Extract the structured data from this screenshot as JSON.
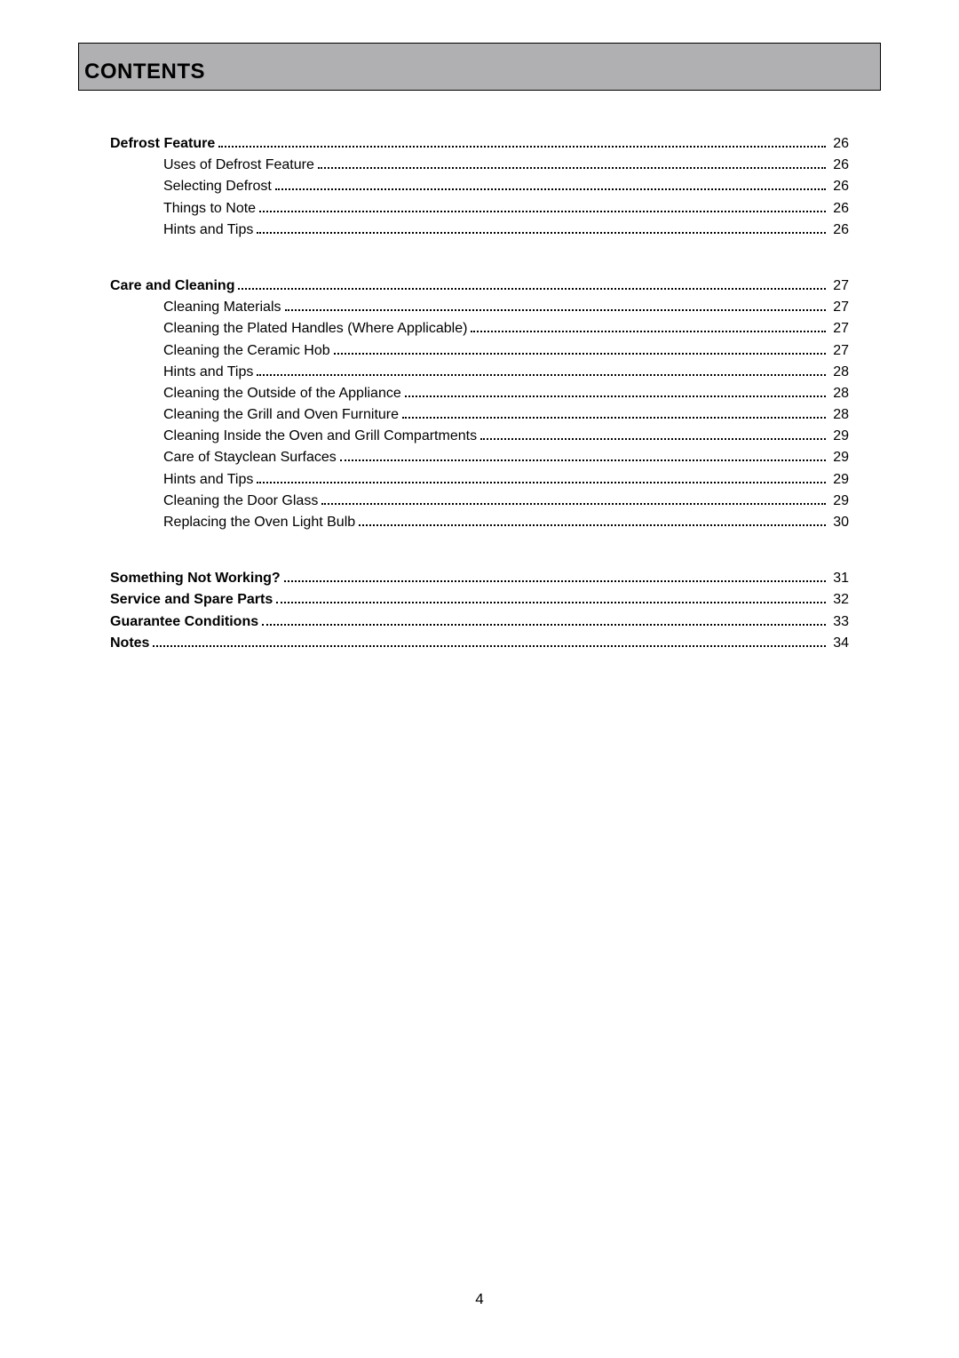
{
  "header": {
    "title": "CONTENTS"
  },
  "page_number": "4",
  "sections": [
    {
      "heading": {
        "label": "Defrost Feature",
        "page": "26"
      },
      "items": [
        {
          "label": "Uses of Defrost Feature",
          "page": "26"
        },
        {
          "label": "Selecting Defrost",
          "page": "26"
        },
        {
          "label": "Things to Note",
          "page": "26"
        },
        {
          "label": "Hints and Tips",
          "page": "26"
        }
      ]
    },
    {
      "heading": {
        "label": "Care and Cleaning",
        "page": "27"
      },
      "items": [
        {
          "label": "Cleaning Materials",
          "page": "27"
        },
        {
          "label": "Cleaning the Plated Handles (Where Applicable)",
          "page": "27"
        },
        {
          "label": "Cleaning the Ceramic Hob",
          "page": "27"
        },
        {
          "label": "Hints and Tips",
          "page": "28"
        },
        {
          "label": "Cleaning the Outside of the Appliance",
          "page": "28"
        },
        {
          "label": "Cleaning the Grill and Oven Furniture",
          "page": "28"
        },
        {
          "label": "Cleaning Inside the Oven and Grill Compartments",
          "page": "29"
        },
        {
          "label": "Care of Stayclean Surfaces",
          "page": "29"
        },
        {
          "label": "Hints and Tips",
          "page": "29"
        },
        {
          "label": "Cleaning the Door Glass",
          "page": "29"
        },
        {
          "label": "Replacing the Oven Light Bulb",
          "page": "30"
        }
      ]
    },
    {
      "heading": null,
      "items": [
        {
          "label": "Something Not Working?",
          "page": "31",
          "bold": true
        },
        {
          "label": "Service and Spare Parts",
          "page": "32",
          "bold": true
        },
        {
          "label": "Guarantee Conditions",
          "page": "33",
          "bold": true
        },
        {
          "label": "Notes",
          "page": "34",
          "bold": true
        }
      ]
    }
  ]
}
